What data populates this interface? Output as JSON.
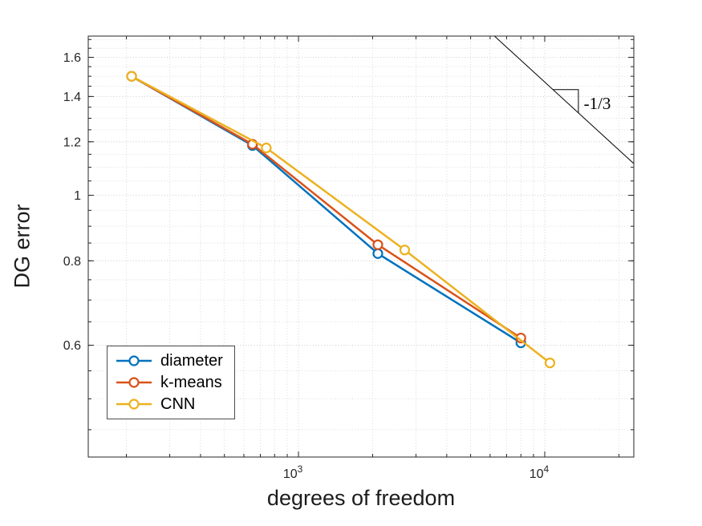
{
  "chart_data": {
    "type": "line",
    "title": "",
    "xlabel": "degrees of freedom",
    "ylabel": "DG error",
    "xscale": "log",
    "yscale": "log",
    "xlim": [
      140,
      23000
    ],
    "ylim": [
      0.41,
      1.72
    ],
    "xticks": [
      1000,
      10000
    ],
    "yticks": [
      0.6,
      0.8,
      1,
      1.2,
      1.4,
      1.6
    ],
    "x_minor_grid": [
      200,
      300,
      400,
      500,
      600,
      700,
      800,
      900,
      2000,
      3000,
      4000,
      5000,
      6000,
      7000,
      8000,
      9000,
      20000
    ],
    "y_minor_grid": [
      0.45,
      0.5,
      0.55,
      0.6,
      0.65,
      0.7,
      0.75,
      0.8,
      0.85,
      0.9,
      0.95,
      1.0,
      1.05,
      1.1,
      1.15,
      1.2,
      1.25,
      1.3,
      1.35,
      1.4,
      1.45,
      1.5,
      1.55,
      1.6,
      1.65,
      1.7
    ],
    "grid": true,
    "legend_position": "lower-left",
    "series": [
      {
        "name": "diameter",
        "color": "#0072BD",
        "x": [
          210,
          650,
          2100,
          8000
        ],
        "y": [
          1.5,
          1.185,
          0.82,
          0.605
        ]
      },
      {
        "name": "k-means",
        "color": "#D95319",
        "x": [
          210,
          650,
          2100,
          8000
        ],
        "y": [
          1.5,
          1.19,
          0.845,
          0.615
        ]
      },
      {
        "name": "CNN",
        "color": "#EDB120",
        "x": [
          210,
          740,
          2700,
          10500
        ],
        "y": [
          1.5,
          1.175,
          0.83,
          0.565
        ]
      }
    ],
    "annotations": {
      "slope_line": {
        "x1": 6250,
        "y1": 1.72,
        "x2": 23000,
        "y2": 1.114
      },
      "slope_triangle": [
        [
          10800,
          1.4333
        ],
        [
          13700,
          1.4333
        ],
        [
          13700,
          1.324
        ]
      ],
      "slope_label": {
        "text": "-1/3",
        "x": 14400,
        "y": 1.368
      }
    },
    "colors": {
      "axis": "#262626",
      "grid_major": "#cfcfcf",
      "grid_minor": "#dadada",
      "annotation": "#000000"
    }
  }
}
